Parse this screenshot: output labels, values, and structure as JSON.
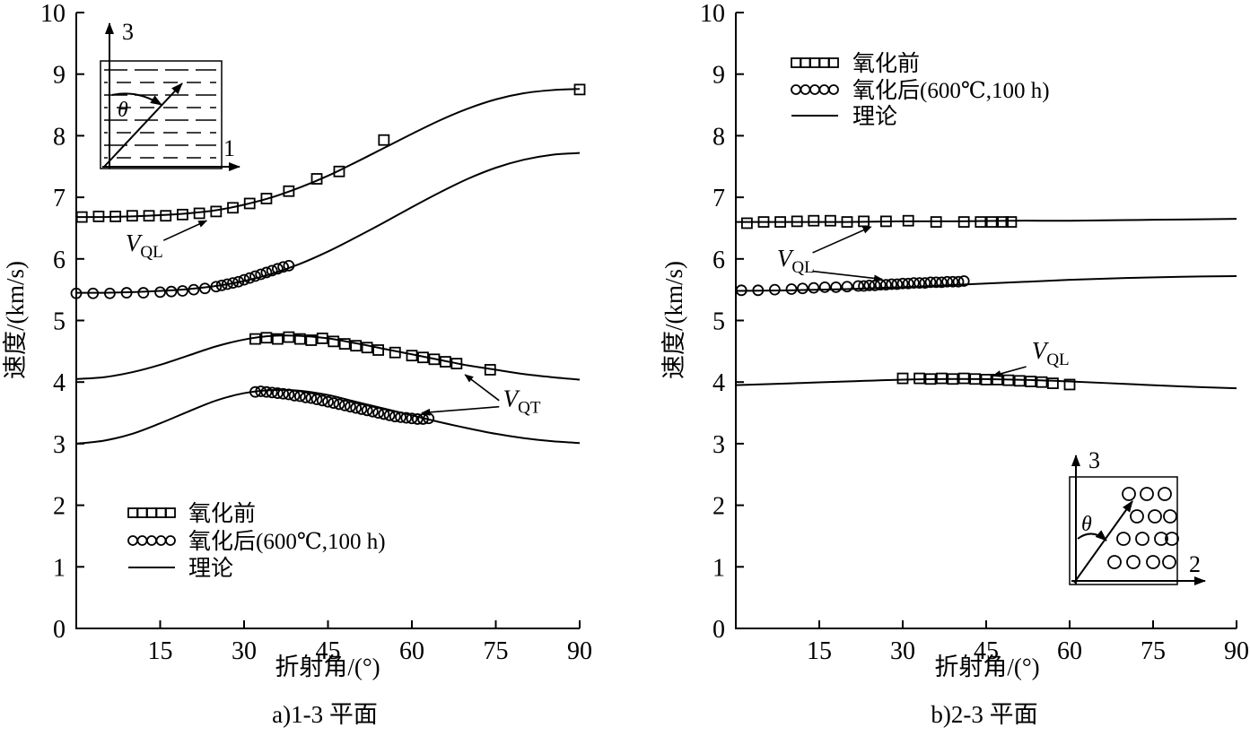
{
  "colors": {
    "ink": "#000000",
    "background": "#ffffff"
  },
  "chart_data": [
    {
      "id": "a",
      "type": "line",
      "caption": "a)1-3 平面",
      "xlabel": "折射角/(°)",
      "ylabel": "速度/(km/s)",
      "xlim": [
        0,
        90
      ],
      "ylim": [
        0,
        10
      ],
      "xticks": [
        15,
        30,
        45,
        60,
        75,
        90
      ],
      "yticks": [
        0,
        1,
        2,
        3,
        4,
        5,
        6,
        7,
        8,
        9,
        10
      ],
      "legend": {
        "position": "inside-bottom-left",
        "entries": [
          {
            "marker": "square",
            "label": "氧化前"
          },
          {
            "marker": "circle",
            "label": "氧化后(600℃,100 h)"
          },
          {
            "marker": "line",
            "label": "理论"
          }
        ]
      },
      "series": [
        {
          "name": "理论 VQL 氧化前",
          "kind": "curve",
          "x": [
            0,
            5,
            10,
            15,
            20,
            25,
            30,
            35,
            40,
            45,
            50,
            55,
            60,
            65,
            70,
            75,
            80,
            85,
            90
          ],
          "y": [
            6.68,
            6.68,
            6.69,
            6.71,
            6.74,
            6.79,
            6.88,
            7.0,
            7.16,
            7.35,
            7.57,
            7.8,
            8.03,
            8.25,
            8.44,
            8.59,
            8.69,
            8.74,
            8.76
          ]
        },
        {
          "name": "理论 VQL 氧化后",
          "kind": "curve",
          "x": [
            0,
            5,
            10,
            15,
            20,
            25,
            30,
            35,
            40,
            45,
            50,
            55,
            60,
            65,
            70,
            75,
            80,
            85,
            90
          ],
          "y": [
            5.45,
            5.45,
            5.46,
            5.48,
            5.51,
            5.56,
            5.64,
            5.76,
            5.92,
            6.12,
            6.35,
            6.59,
            6.84,
            7.08,
            7.3,
            7.48,
            7.61,
            7.69,
            7.72
          ]
        },
        {
          "name": "理论 VQT 氧化前",
          "kind": "curve",
          "x": [
            0,
            5,
            10,
            15,
            20,
            25,
            30,
            35,
            40,
            45,
            50,
            55,
            60,
            65,
            70,
            75,
            80,
            85,
            90
          ],
          "y": [
            4.05,
            4.08,
            4.16,
            4.28,
            4.43,
            4.58,
            4.69,
            4.75,
            4.75,
            4.71,
            4.63,
            4.54,
            4.45,
            4.36,
            4.27,
            4.2,
            4.13,
            4.08,
            4.04
          ]
        },
        {
          "name": "理论 VQT 氧化后",
          "kind": "curve",
          "x": [
            0,
            5,
            10,
            15,
            20,
            25,
            30,
            35,
            40,
            45,
            50,
            55,
            60,
            65,
            70,
            75,
            80,
            85,
            90
          ],
          "y": [
            3.0,
            3.05,
            3.16,
            3.33,
            3.52,
            3.7,
            3.82,
            3.87,
            3.86,
            3.79,
            3.68,
            3.57,
            3.46,
            3.35,
            3.25,
            3.16,
            3.09,
            3.04,
            3.01
          ]
        },
        {
          "name": "氧化前 VQL",
          "kind": "markers",
          "marker": "square",
          "x": [
            1,
            4,
            7,
            10,
            13,
            16,
            19,
            22,
            25,
            28,
            31,
            34,
            38,
            43,
            47,
            55,
            90
          ],
          "y": [
            6.68,
            6.69,
            6.69,
            6.7,
            6.7,
            6.7,
            6.72,
            6.74,
            6.77,
            6.83,
            6.9,
            6.98,
            7.1,
            7.3,
            7.42,
            7.93,
            8.75
          ]
        },
        {
          "name": "氧化后 VQL",
          "kind": "markers",
          "marker": "circle",
          "x": [
            0,
            3,
            6,
            9,
            12,
            15,
            17,
            19,
            21,
            23,
            25,
            26,
            27,
            28,
            29,
            30,
            31,
            32,
            33,
            34,
            35,
            36,
            37,
            38
          ],
          "y": [
            5.44,
            5.44,
            5.44,
            5.45,
            5.45,
            5.46,
            5.47,
            5.48,
            5.5,
            5.52,
            5.55,
            5.57,
            5.59,
            5.61,
            5.63,
            5.66,
            5.69,
            5.72,
            5.75,
            5.78,
            5.81,
            5.84,
            5.87,
            5.89
          ]
        },
        {
          "name": "氧化前 VQT",
          "kind": "markers",
          "marker": "square",
          "x": [
            32,
            34,
            36,
            38,
            40,
            42,
            44,
            46,
            48,
            50,
            52,
            54,
            57,
            60,
            62,
            64,
            66,
            68,
            74
          ],
          "y": [
            4.7,
            4.72,
            4.7,
            4.73,
            4.7,
            4.68,
            4.71,
            4.66,
            4.62,
            4.59,
            4.56,
            4.52,
            4.48,
            4.43,
            4.4,
            4.37,
            4.33,
            4.3,
            4.2
          ]
        },
        {
          "name": "氧化后 VQT",
          "kind": "markers",
          "marker": "circle",
          "x": [
            32,
            33,
            34,
            35,
            36,
            37,
            38,
            39,
            40,
            41,
            42,
            43,
            44,
            45,
            46,
            47,
            48,
            49,
            50,
            51,
            52,
            53,
            54,
            55,
            56,
            57,
            58,
            59,
            60,
            61,
            62,
            63
          ],
          "y": [
            3.84,
            3.85,
            3.84,
            3.83,
            3.82,
            3.81,
            3.8,
            3.78,
            3.77,
            3.75,
            3.74,
            3.72,
            3.7,
            3.68,
            3.66,
            3.64,
            3.62,
            3.6,
            3.58,
            3.56,
            3.54,
            3.52,
            3.5,
            3.48,
            3.46,
            3.44,
            3.43,
            3.42,
            3.41,
            3.4,
            3.4,
            3.41
          ]
        }
      ],
      "annotations": [
        {
          "text_main": "V",
          "text_sub": "QL",
          "pos": [
            8.8,
            6.13
          ],
          "lines": [
            [
              [
                15.6,
                6.3
              ],
              [
                23.3,
                6.62
              ]
            ]
          ]
        },
        {
          "text_main": "V",
          "text_sub": "QT",
          "pos": [
            76.3,
            3.6
          ],
          "lines": [
            [
              [
                75.6,
                3.7
              ],
              [
                69.5,
                4.12
              ]
            ],
            [
              [
                75.6,
                3.6
              ],
              [
                61.8,
                3.5
              ]
            ]
          ]
        }
      ],
      "inset": {
        "pattern": "layer-lines",
        "vertical_axis_label": "3",
        "horizontal_axis_label": "1",
        "angle_label": "θ"
      }
    },
    {
      "id": "b",
      "type": "line",
      "caption": "b)2-3 平面",
      "xlabel": "折射角/(°)",
      "ylabel": "速度/(km/s)",
      "xlim": [
        0,
        90
      ],
      "ylim": [
        0,
        10
      ],
      "xticks": [
        15,
        30,
        45,
        60,
        75,
        90
      ],
      "yticks": [
        0,
        1,
        2,
        3,
        4,
        5,
        6,
        7,
        8,
        9,
        10
      ],
      "legend": {
        "position": "inside-top-left",
        "entries": [
          {
            "marker": "square",
            "label": "氧化前"
          },
          {
            "marker": "circle",
            "label": "氧化后(600℃,100 h)"
          },
          {
            "marker": "line",
            "label": "理论"
          }
        ]
      },
      "series": [
        {
          "name": "理论 VQL 氧化前",
          "kind": "curve",
          "x": [
            0,
            10,
            20,
            30,
            40,
            50,
            60,
            70,
            80,
            90
          ],
          "y": [
            6.6,
            6.6,
            6.6,
            6.61,
            6.61,
            6.62,
            6.62,
            6.63,
            6.64,
            6.65
          ]
        },
        {
          "name": "理论 VQL 氧化后",
          "kind": "curve",
          "x": [
            0,
            10,
            20,
            30,
            40,
            50,
            60,
            70,
            80,
            90
          ],
          "y": [
            5.48,
            5.49,
            5.51,
            5.54,
            5.58,
            5.62,
            5.66,
            5.69,
            5.71,
            5.72
          ]
        },
        {
          "name": "理论 VQT",
          "kind": "curve",
          "x": [
            0,
            10,
            20,
            30,
            40,
            50,
            60,
            70,
            80,
            90
          ],
          "y": [
            3.95,
            3.98,
            4.01,
            4.04,
            4.05,
            4.04,
            4.01,
            3.97,
            3.93,
            3.9
          ]
        },
        {
          "name": "氧化前 VQL",
          "kind": "markers",
          "marker": "square",
          "x": [
            2,
            5,
            8,
            11,
            14,
            17,
            20,
            23,
            27,
            31,
            36,
            41,
            44,
            46,
            48,
            49.5
          ],
          "y": [
            6.58,
            6.6,
            6.6,
            6.61,
            6.62,
            6.62,
            6.6,
            6.61,
            6.61,
            6.62,
            6.6,
            6.6,
            6.6,
            6.6,
            6.6,
            6.6
          ]
        },
        {
          "name": "氧化后 VQL",
          "kind": "markers",
          "marker": "circle",
          "x": [
            1,
            4,
            7,
            10,
            12,
            14,
            16,
            18,
            20,
            22,
            23,
            24,
            25,
            26,
            27,
            28,
            29,
            30,
            31,
            32,
            33,
            34,
            35,
            36,
            37,
            38,
            39,
            40,
            41
          ],
          "y": [
            5.49,
            5.49,
            5.5,
            5.51,
            5.52,
            5.53,
            5.54,
            5.54,
            5.55,
            5.56,
            5.56,
            5.57,
            5.57,
            5.58,
            5.58,
            5.59,
            5.59,
            5.6,
            5.6,
            5.61,
            5.61,
            5.61,
            5.62,
            5.62,
            5.62,
            5.63,
            5.63,
            5.63,
            5.64
          ]
        },
        {
          "name": "氧化前 VQT",
          "kind": "markers",
          "marker": "square",
          "x": [
            30,
            33,
            35,
            37,
            39,
            41,
            43,
            45,
            47,
            49,
            51,
            53,
            55,
            57,
            60
          ],
          "y": [
            4.06,
            4.06,
            4.05,
            4.06,
            4.05,
            4.06,
            4.05,
            4.04,
            4.04,
            4.03,
            4.02,
            4.01,
            4.0,
            3.98,
            3.96
          ]
        }
      ],
      "annotations": [
        {
          "text_main": "V",
          "text_sub": "QL",
          "pos": [
            7.4,
            5.88
          ],
          "lines": [
            [
              [
                13.8,
                6.1
              ],
              [
                24.3,
                6.52
              ]
            ],
            [
              [
                13.8,
                5.8
              ],
              [
                26.3,
                5.67
              ]
            ]
          ]
        },
        {
          "text_main": "V",
          "text_sub": "QL",
          "pos": [
            53.2,
            4.38
          ],
          "lines": [
            [
              [
                52.2,
                4.25
              ],
              [
                46.2,
                4.1
              ]
            ]
          ]
        }
      ],
      "inset": {
        "pattern": "fiber-circles",
        "vertical_axis_label": "3",
        "horizontal_axis_label": "2",
        "angle_label": "θ"
      }
    }
  ]
}
